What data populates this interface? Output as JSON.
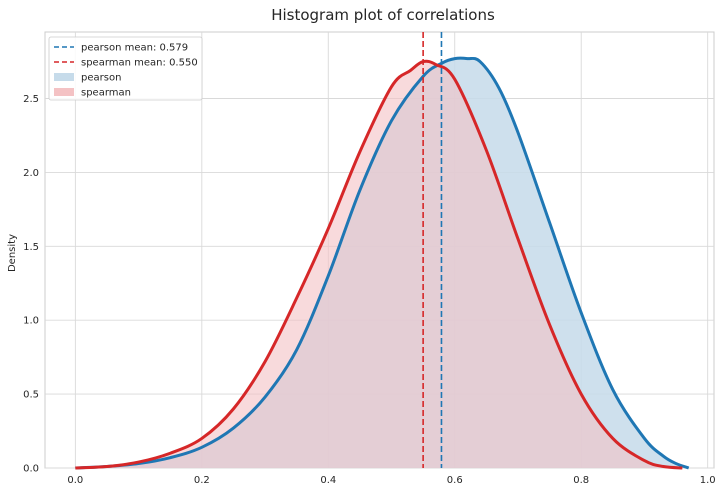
{
  "chart_data": {
    "type": "area",
    "title": "Histogram plot of correlations",
    "xlabel": "",
    "ylabel": "Density",
    "xlim": [
      -0.048,
      1.01
    ],
    "ylim": [
      0,
      2.95
    ],
    "xticks": [
      0.0,
      0.2,
      0.4,
      0.6,
      0.8,
      1.0
    ],
    "xtick_labels": [
      "0.0",
      "0.2",
      "0.4",
      "0.6",
      "0.8",
      "1.0"
    ],
    "yticks": [
      0.0,
      0.5,
      1.0,
      1.5,
      2.0,
      2.5
    ],
    "ytick_labels": [
      "0.0",
      "0.5",
      "1.0",
      "1.5",
      "2.0",
      "2.5"
    ],
    "grid": true,
    "legend_position": "top-left",
    "series": [
      {
        "name": "pearson",
        "color": "#1f77b4",
        "fill_color": "#c6dbea",
        "x": [
          0.0,
          0.05,
          0.1,
          0.15,
          0.2,
          0.25,
          0.3,
          0.35,
          0.4,
          0.45,
          0.5,
          0.55,
          0.58,
          0.6,
          0.62,
          0.64,
          0.67,
          0.7,
          0.75,
          0.8,
          0.85,
          0.9,
          0.93,
          0.95,
          0.97
        ],
        "y": [
          0.0,
          0.01,
          0.03,
          0.07,
          0.14,
          0.27,
          0.48,
          0.8,
          1.3,
          1.88,
          2.35,
          2.65,
          2.74,
          2.77,
          2.77,
          2.75,
          2.57,
          2.27,
          1.66,
          1.05,
          0.53,
          0.2,
          0.08,
          0.03,
          0.0
        ]
      },
      {
        "name": "spearman",
        "color": "#d62728",
        "fill_color": "#f4c2c4",
        "x": [
          0.0,
          0.05,
          0.1,
          0.15,
          0.2,
          0.25,
          0.3,
          0.35,
          0.4,
          0.45,
          0.5,
          0.53,
          0.55,
          0.57,
          0.6,
          0.65,
          0.7,
          0.75,
          0.8,
          0.85,
          0.9,
          0.93,
          0.96
        ],
        "y": [
          0.0,
          0.01,
          0.04,
          0.1,
          0.2,
          0.4,
          0.72,
          1.15,
          1.62,
          2.14,
          2.58,
          2.69,
          2.75,
          2.73,
          2.63,
          2.15,
          1.55,
          0.97,
          0.5,
          0.2,
          0.05,
          0.01,
          0.0
        ]
      }
    ],
    "mean_lines": [
      {
        "label": "pearson mean: 0.579",
        "x": 0.579,
        "color": "#1f77b4",
        "style": "dashed"
      },
      {
        "label": "spearman mean: 0.550",
        "x": 0.55,
        "color": "#d62728",
        "style": "dashed"
      }
    ],
    "legend": [
      {
        "kind": "line",
        "label": "pearson mean: 0.579",
        "color": "#1f77b4"
      },
      {
        "kind": "line",
        "label": "spearman mean: 0.550",
        "color": "#d62728"
      },
      {
        "kind": "patch",
        "label": "pearson",
        "color": "#c6dbea"
      },
      {
        "kind": "patch",
        "label": "spearman",
        "color": "#f4c2c4"
      }
    ]
  }
}
